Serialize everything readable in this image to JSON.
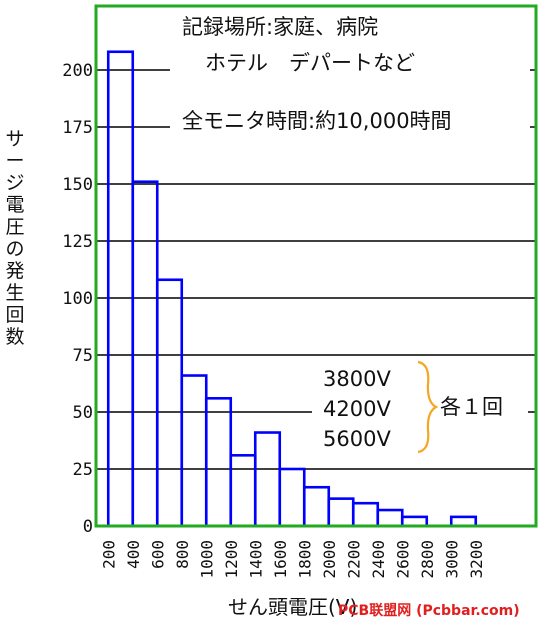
{
  "chart_data": {
    "type": "bar",
    "title_lines": [
      "記録場所:家庭、病院",
      "ホテル　デパートなど",
      "全モニタ時間:約10,000時間"
    ],
    "xlabel": "せん頭電圧(V)",
    "ylabel": "サージ電圧の発生回数",
    "x_ticks": [
      "200",
      "400",
      "600",
      "800",
      "1000",
      "1200",
      "1400",
      "1600",
      "1800",
      "2000",
      "2200",
      "2400",
      "2600",
      "2800",
      "3000",
      "3200"
    ],
    "bins": [
      {
        "from": 200,
        "to": 400,
        "value": 208
      },
      {
        "from": 400,
        "to": 600,
        "value": 151
      },
      {
        "from": 600,
        "to": 800,
        "value": 108
      },
      {
        "from": 800,
        "to": 1000,
        "value": 66
      },
      {
        "from": 1000,
        "to": 1200,
        "value": 56
      },
      {
        "from": 1200,
        "to": 1400,
        "value": 31
      },
      {
        "from": 1400,
        "to": 1600,
        "value": 41
      },
      {
        "from": 1600,
        "to": 1800,
        "value": 25
      },
      {
        "from": 1800,
        "to": 2000,
        "value": 17
      },
      {
        "from": 2000,
        "to": 2200,
        "value": 12
      },
      {
        "from": 2200,
        "to": 2400,
        "value": 10
      },
      {
        "from": 2400,
        "to": 2600,
        "value": 7
      },
      {
        "from": 2600,
        "to": 2800,
        "value": 4
      },
      {
        "from": 2800,
        "to": 3000,
        "value": 0
      },
      {
        "from": 3000,
        "to": 3200,
        "value": 4
      }
    ],
    "y_ticks": [
      0,
      25,
      50,
      75,
      100,
      125,
      150,
      175,
      200
    ],
    "ylim": [
      0,
      225
    ],
    "xlim": [
      100,
      3500
    ],
    "grid": true,
    "annotation": {
      "voltages": [
        "3800V",
        "4200V",
        "5600V"
      ],
      "label": "各１回",
      "bracket_color": "#f5a623"
    },
    "colors": {
      "bars": "#0000ff",
      "frame": "#22aa22",
      "grid": "#000000"
    }
  },
  "watermark": "PCB联盟网 (Pcbbar.com)"
}
